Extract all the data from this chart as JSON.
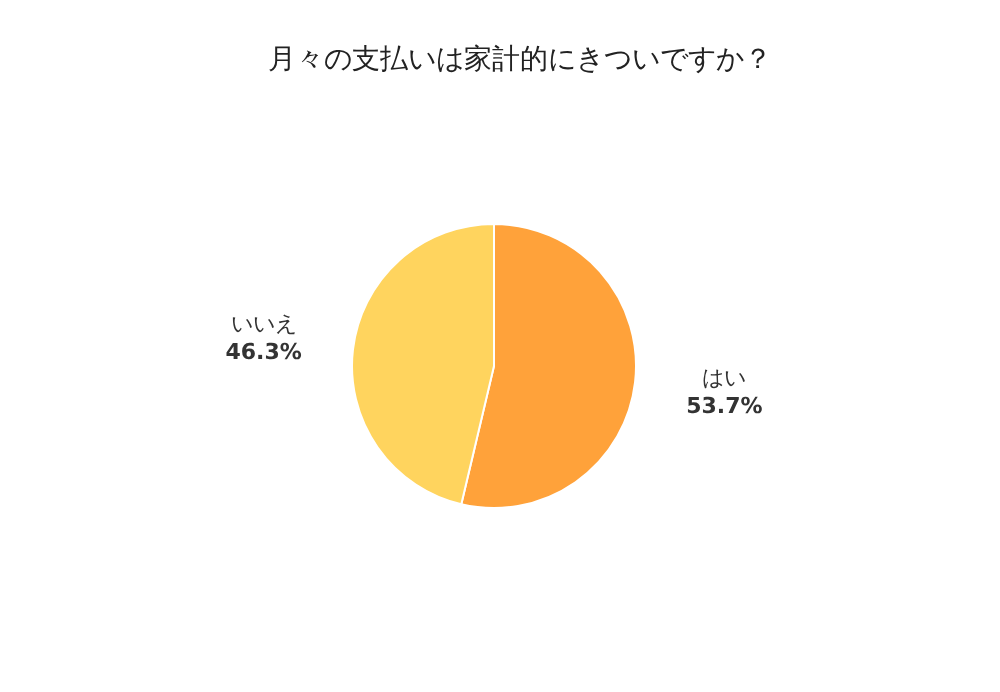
{
  "chart_data": {
    "type": "pie",
    "title": "月々の支払いは家計的にきついですか？",
    "categories": [
      "はい",
      "いいえ"
    ],
    "values": [
      53.7,
      46.3
    ],
    "value_labels": [
      "53.7%",
      "46.3%"
    ],
    "colors": [
      "#ffa23a",
      "#ffd45e"
    ]
  }
}
